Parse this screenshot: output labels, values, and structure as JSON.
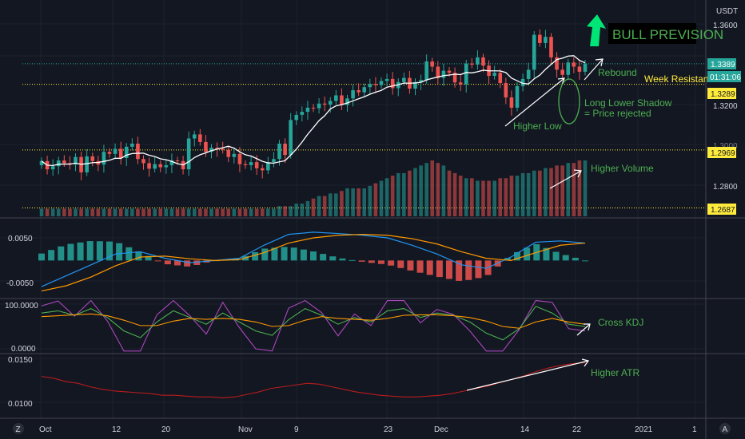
{
  "currency": "USDT",
  "price_scale": {
    "ticks": [
      "1.3600",
      "1.3200",
      "1.2800"
    ],
    "partial_tick": "1.3000",
    "labels": {
      "last": {
        "value": 1.3389,
        "text": "1.3389"
      },
      "countdown": "01:31:06",
      "week_resistance": {
        "value": 1.3289,
        "text": "1.3289"
      },
      "level_1": {
        "value": 1.2969,
        "text": "1.2969"
      },
      "level_2": {
        "value": 1.2687,
        "text": "1.2687"
      }
    }
  },
  "macd_scale": {
    "ticks": [
      "0.0050",
      "-0.0050"
    ]
  },
  "kdj_scale": {
    "ticks": [
      "100.0000",
      "0.0000"
    ]
  },
  "atr_scale": {
    "ticks": [
      "0.0150",
      "0.0100"
    ]
  },
  "time_axis": {
    "labels": [
      "Oct",
      "12",
      "20",
      "Nov",
      "9",
      "23",
      "Dec",
      "14",
      "22",
      "2021",
      "1"
    ]
  },
  "annotations": {
    "bull": "BULL PREVISION",
    "rebound": "Rebound",
    "week_resistance": "Week Resistance",
    "shadow_line1": "Long Lower Shadow",
    "shadow_line2": "= Price rejected",
    "higher_low": "Higher Low",
    "higher_volume": "Higher Volume",
    "cross_kdj": "Cross KDJ",
    "higher_atr": "Higher ATR"
  },
  "colors": {
    "background": "#131722",
    "up": "#26a69a",
    "down": "#ef5350",
    "annotation": "#4caf50",
    "yellow": "#ffeb3b",
    "ma": "#ffffff",
    "macd": "#2196f3",
    "signal": "#ff9800",
    "kdj_k": "#ab47bc",
    "kdj_d": "#ff9800",
    "kdj_j": "#4caf50",
    "atr": "#b71c1c"
  },
  "chart_data": [
    {
      "type": "candlestick",
      "title": "",
      "ylim": [
        1.265,
        1.368
      ],
      "support_resistance": [
        1.3389,
        1.3289,
        1.2969,
        1.2687
      ],
      "x_labels": [
        "Oct",
        "12",
        "20",
        "Nov",
        "9",
        "23",
        "Dec",
        "14",
        "22",
        "2021",
        "1"
      ],
      "close": [
        1.2915,
        1.2875,
        1.289,
        1.2918,
        1.2905,
        1.2898,
        1.2935,
        1.286,
        1.2938,
        1.2915,
        1.2898,
        1.296,
        1.295,
        1.2975,
        1.293,
        1.2985,
        1.3,
        1.2925,
        1.2905,
        1.2878,
        1.29,
        1.2885,
        1.2895,
        1.2918,
        1.2915,
        1.2875,
        1.3025,
        1.3045,
        1.3008,
        1.296,
        1.298,
        1.2975,
        1.297,
        1.2935,
        1.295,
        1.29,
        1.2895,
        1.291,
        1.288,
        1.287,
        1.291,
        1.2925,
        1.3,
        1.2945,
        1.3115,
        1.314,
        1.3155,
        1.3175,
        1.3172,
        1.3195,
        1.319,
        1.3208,
        1.3235,
        1.3188,
        1.322,
        1.326,
        1.325,
        1.3275,
        1.329,
        1.3285,
        1.3305,
        1.3315,
        1.327,
        1.33,
        1.332,
        1.3268,
        1.33,
        1.331,
        1.34,
        1.3375,
        1.332,
        1.3355,
        1.3345,
        1.3298,
        1.3288,
        1.339,
        1.3385,
        1.342,
        1.338,
        1.333,
        1.3345,
        1.3295,
        1.3225,
        1.3175,
        1.328,
        1.3315,
        1.336,
        1.353,
        1.349,
        1.352,
        1.342,
        1.336,
        1.3335,
        1.3395,
        1.3375,
        1.335,
        1.339
      ],
      "volume": [
        3,
        3,
        3,
        3,
        3,
        3,
        3,
        3,
        3,
        3,
        3,
        3,
        3,
        3,
        3,
        3,
        3,
        3,
        3,
        3,
        3,
        3,
        3,
        3,
        3,
        3,
        3,
        3,
        3,
        3,
        3,
        3,
        3,
        3,
        3,
        3,
        3,
        3,
        3,
        3,
        3,
        3,
        4,
        4,
        4,
        5,
        5,
        6,
        7,
        8,
        8,
        9,
        9,
        10,
        11,
        11,
        11,
        11,
        12,
        13,
        14,
        15,
        16,
        17,
        17,
        18,
        19,
        20,
        21,
        22,
        21,
        20,
        18,
        17,
        16,
        15,
        15,
        14,
        14,
        14,
        14,
        15,
        15,
        16,
        16,
        17,
        17,
        18,
        18,
        19,
        19,
        20,
        20,
        21,
        21,
        22,
        22
      ]
    },
    {
      "type": "line",
      "title": "",
      "ylim": [
        -0.008,
        0.0085
      ],
      "y_ticks": [
        "0.0050",
        "-0.0050"
      ],
      "macd_line": [
        -0.006,
        -0.0035,
        -0.001,
        0.0015,
        0.002,
        0.0005,
        -0.0005,
        0.0,
        0.0005,
        0.0035,
        0.006,
        0.0065,
        0.0062,
        0.0058,
        0.0052,
        0.0035,
        0.0015,
        -0.001,
        -0.0018,
        0.0008,
        0.0042,
        0.0045,
        0.004
      ],
      "signal_line": [
        -0.007,
        -0.0058,
        -0.0038,
        -0.0012,
        0.0008,
        0.001,
        0.0004,
        0.0,
        0.0002,
        0.0018,
        0.004,
        0.0052,
        0.0058,
        0.006,
        0.0058,
        0.005,
        0.0038,
        0.002,
        0.0005,
        0.0,
        0.0018,
        0.0035,
        0.004
      ]
    },
    {
      "type": "line",
      "title": "",
      "ylim": [
        0,
        100
      ],
      "y_ticks": [
        "100.0000",
        "0.0000"
      ],
      "k": [
        80,
        85,
        75,
        90,
        70,
        40,
        25,
        60,
        85,
        70,
        55,
        80,
        60,
        40,
        30,
        65,
        90,
        75,
        55,
        70,
        60,
        85,
        90,
        70,
        80,
        75,
        60,
        35,
        20,
        45,
        95,
        80,
        55,
        50
      ],
      "d": [
        72,
        74,
        76,
        78,
        74,
        64,
        52,
        52,
        62,
        68,
        66,
        68,
        66,
        60,
        50,
        52,
        64,
        72,
        68,
        66,
        64,
        68,
        75,
        76,
        76,
        74,
        70,
        62,
        50,
        46,
        60,
        68,
        60,
        55
      ]
    },
    {
      "type": "line",
      "title": "",
      "ylim": [
        0.0085,
        0.0155
      ],
      "y_ticks": [
        "0.0150",
        "0.0100"
      ],
      "atr": [
        0.0132,
        0.013,
        0.0126,
        0.0124,
        0.012,
        0.0117,
        0.0115,
        0.0114,
        0.0113,
        0.0112,
        0.011,
        0.011,
        0.0109,
        0.0108,
        0.0108,
        0.0107,
        0.0108,
        0.0111,
        0.0114,
        0.0118,
        0.012,
        0.0122,
        0.0124,
        0.0123,
        0.012,
        0.0117,
        0.0114,
        0.0112,
        0.011,
        0.0109,
        0.0108,
        0.0108,
        0.0109,
        0.011,
        0.0112,
        0.0115,
        0.0118,
        0.0121,
        0.0125,
        0.0129,
        0.0133,
        0.0138,
        0.0142,
        0.0145,
        0.0147,
        0.0148
      ]
    }
  ]
}
